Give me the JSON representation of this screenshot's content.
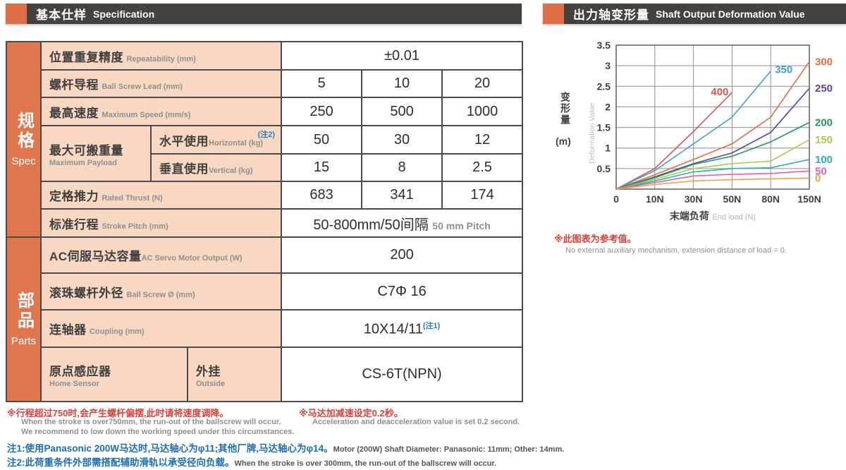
{
  "left_header": {
    "zh": "基本仕样",
    "en": "Specification"
  },
  "right_header": {
    "zh": "出力轴变形量",
    "en": "Shaft Output Deformation Value"
  },
  "sections": [
    {
      "zh": "规格",
      "en": "Spec"
    },
    {
      "zh": "部品",
      "en": "Parts"
    }
  ],
  "table": {
    "rows": [
      {
        "zh": "位置重复精度",
        "en": "Repeatability (mm)",
        "value": "±0.01"
      },
      {
        "zh": "螺杆导程",
        "en": "Ball Screw Lead (mm)",
        "values": [
          "5",
          "10",
          "20"
        ]
      },
      {
        "zh": "最高速度",
        "en": "Maximum Speed (mm/s)",
        "values": [
          "250",
          "500",
          "1000"
        ]
      },
      {
        "group_zh": "最大可搬重量",
        "group_en": "Maximum Payload",
        "sub1_zh": "水平使用",
        "sub1_en": "Horizontal (kg)",
        "sub1_sup": "(注2)",
        "sub1_values": [
          "50",
          "30",
          "12"
        ],
        "sub2_zh": "垂直使用",
        "sub2_en": "Vertical (kg)",
        "sub2_values": [
          "15",
          "8",
          "2.5"
        ]
      },
      {
        "zh": "定格推力",
        "en": "Rated Thrust (N)",
        "values": [
          "683",
          "341",
          "174"
        ]
      },
      {
        "zh": "标准行程",
        "en": "Stroke Pitch (mm)",
        "value": "50-800mm/50间隔",
        "value_sub": "50 mm Pitch"
      },
      {
        "zh": "AC伺服马达容量",
        "en": "AC Servo Motor Output (W)",
        "value": "200"
      },
      {
        "zh": "滚珠螺杆外径",
        "en": "Ball Screw Ø (mm)",
        "value": "C7Φ 16"
      },
      {
        "zh": "连轴器",
        "en": "Coupling (mm)",
        "value": "10X14/11",
        "value_sup": "(注1)"
      },
      {
        "zh": "原点感应器",
        "en": "Home Sensor",
        "zh2": "外挂",
        "en2": "Outside",
        "value": "CS-6T(NPN)"
      }
    ]
  },
  "chart_data": {
    "type": "line",
    "title": "",
    "x_categories": [
      "0",
      "10N",
      "30N",
      "50N",
      "80N",
      "150N"
    ],
    "xlabel_zh": "末端负荷",
    "xlabel_en": "End load (N)",
    "ylabel_zh": "变形量",
    "ylabel_unit": "(m)",
    "ylabel_en": "Deformation Value",
    "ylim": [
      0,
      3.5
    ],
    "yticks": [
      0.5,
      1,
      1.5,
      2,
      2.5,
      3,
      3.5
    ],
    "grid": true,
    "legend_position": "right-edge and inline labels",
    "series": [
      {
        "name": "400",
        "color": "#d8544c",
        "label": "inline",
        "side": "left",
        "values": [
          0,
          0.5,
          1.4,
          2.35,
          null,
          null
        ]
      },
      {
        "name": "350",
        "color": "#3fa0dc",
        "label": "inline",
        "side": "right",
        "values": [
          0,
          0.45,
          1.1,
          1.75,
          2.87,
          null
        ]
      },
      {
        "name": "300",
        "color": "#e96c38",
        "label": "right",
        "values": [
          0,
          0.35,
          0.72,
          1.1,
          1.75,
          3.1
        ]
      },
      {
        "name": "250",
        "color": "#663f9e",
        "label": "right",
        "values": [
          0,
          0.3,
          0.62,
          0.88,
          1.38,
          2.45
        ]
      },
      {
        "name": "200",
        "color": "#27975e",
        "label": "right",
        "values": [
          0,
          0.28,
          0.6,
          0.8,
          1.15,
          1.62
        ]
      },
      {
        "name": "150",
        "color": "#a6cc4e",
        "label": "right",
        "values": [
          0,
          0.24,
          0.5,
          0.62,
          0.68,
          1.2
        ]
      },
      {
        "name": "100",
        "color": "#2ab1b1",
        "label": "right",
        "values": [
          0,
          0.2,
          0.42,
          0.5,
          0.52,
          0.72
        ]
      },
      {
        "name": "50",
        "color": "#e75fab",
        "label": "right",
        "values": [
          0,
          0.16,
          0.32,
          0.36,
          0.38,
          0.44
        ]
      },
      {
        "name": "0",
        "color": "#f2a444",
        "label": "right",
        "values": [
          0,
          0.11,
          0.2,
          0.23,
          0.25,
          0.27
        ]
      }
    ],
    "note_zh": "※此图表为参考值。",
    "note_en": "No external auxiliary mechanism, extension distance of load = 0."
  },
  "footnotes": {
    "left_red": "※行程超过750时,会产生螺杆偏摆,此时请将速度调降。",
    "left_gray1": "When the stroke is over750mm, the run-out of the ballscrew will occur.",
    "left_gray2": "We recommend to low down the working speed under this circumstances.",
    "right_red": "※马达加减速设定0.2秒。",
    "right_gray": "Acceleration and deacceleration value is set 0.2 second.",
    "note1_zh": "注1:使用Panasonic 200W马达时,马达轴心为φ11;其他厂牌,马达轴心为φ14。",
    "note1_en": "Motor (200W) Shaft Diameter: Panasonic: 11mm; Other: 14mm.",
    "note2_zh": "注2:此荷重条件外部需搭配辅助滑轨以承受径向负载。",
    "note2_en": "When the stroke is over 300mm, the run-out of the ballscrew will occur."
  }
}
